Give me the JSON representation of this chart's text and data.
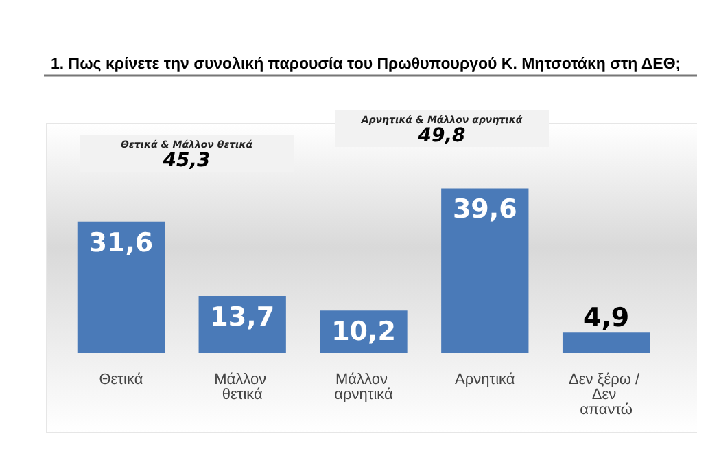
{
  "chart_data": {
    "type": "bar",
    "title": "1. Πως κρίνετε την συνολική παρουσία του Πρωθυπουργού Κ. Μητσοτάκη στη ΔΕΘ;",
    "categories": [
      "Θετικά",
      "Μάλλον θετικά",
      "Μάλλον αρνητικά",
      "Αρνητικά",
      "Δεν ξέρω / Δεν απαντώ"
    ],
    "values": [
      31.6,
      13.7,
      10.2,
      39.6,
      4.9
    ],
    "value_labels": [
      "31,6",
      "13,7",
      "10,2",
      "39,6",
      "4,9"
    ],
    "color": "#4a7ab8",
    "annotations": [
      "Θετικά & Μάλλον θετικά",
      "45,3",
      "Αρνητικά & Μάλλον αρνητικά",
      "49,8"
    ]
  }
}
